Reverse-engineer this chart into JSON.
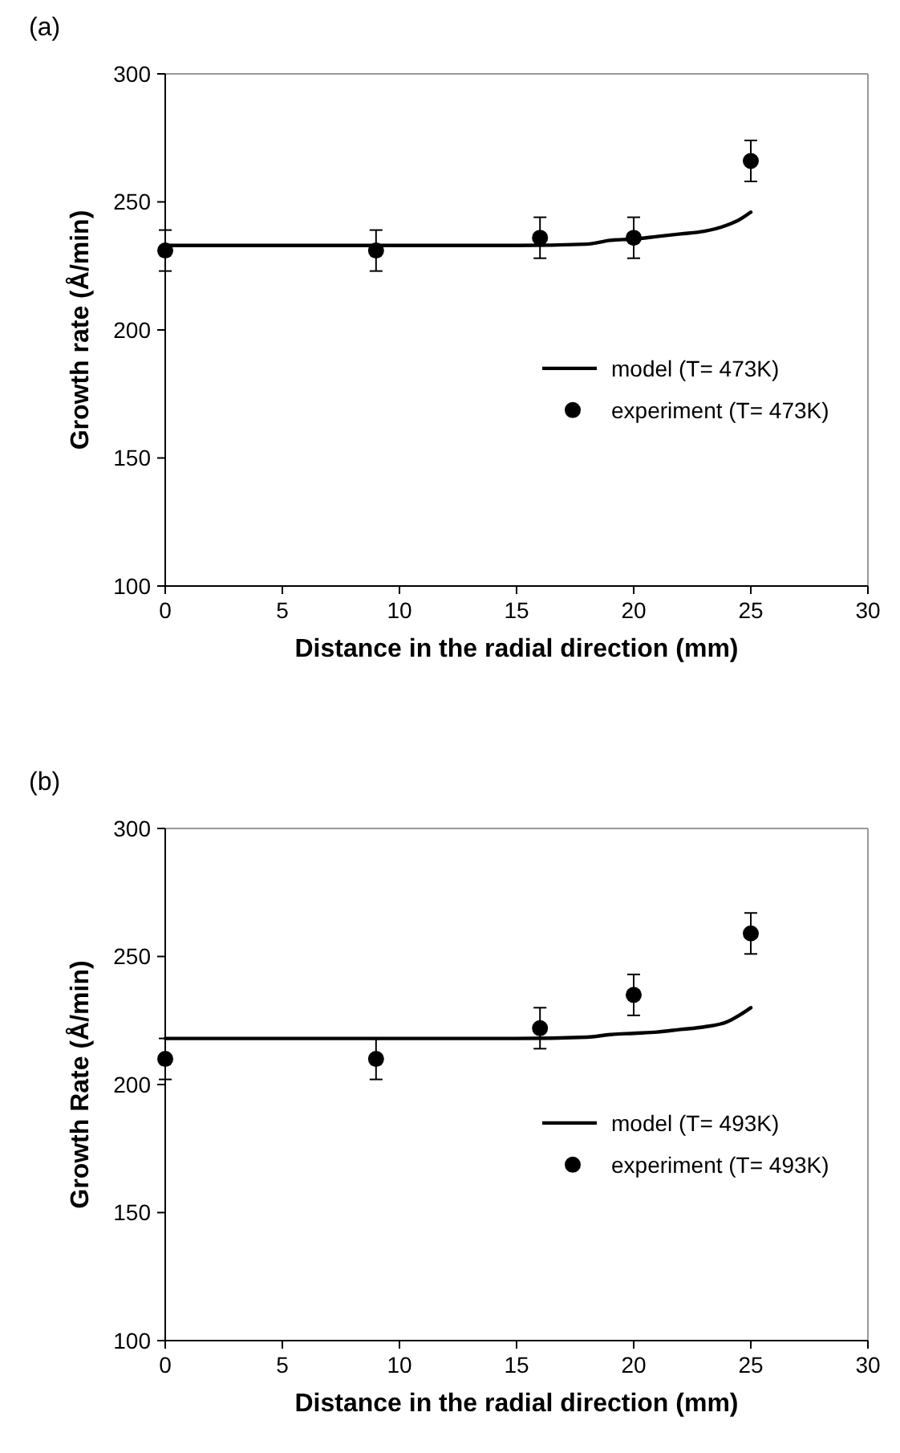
{
  "chart_data": [
    {
      "type": "line",
      "title": "(a)",
      "xlabel": "Distance in the radial direction (mm)",
      "ylabel": "Growth rate (Å/min)",
      "xlim": [
        0,
        30
      ],
      "xticks": [
        0,
        5,
        10,
        15,
        20,
        25,
        30
      ],
      "ylim": [
        100,
        300
      ],
      "yticks": [
        100,
        150,
        200,
        250,
        300
      ],
      "grid": false,
      "legend": "right",
      "series": [
        {
          "name": "model (T= 473K)",
          "color": "#000000",
          "marker": "none",
          "line_style": "solid",
          "x": [
            0,
            5,
            10,
            15,
            18,
            19,
            20,
            21,
            22,
            23,
            24,
            24.5,
            25
          ],
          "values": [
            233,
            233,
            233,
            233,
            233.5,
            235,
            235.5,
            236.5,
            237.5,
            238.5,
            241,
            243,
            246
          ]
        },
        {
          "name": "experiment (T= 473K)",
          "type": "scatter",
          "color": "#000000",
          "marker": "circle",
          "x": [
            0,
            9,
            16,
            20,
            25
          ],
          "values": [
            231,
            231,
            236,
            236,
            266
          ],
          "errors": [
            8,
            8,
            8,
            8,
            8
          ]
        }
      ]
    },
    {
      "type": "line",
      "title": "(b)",
      "xlabel": "Distance in the radial direction (mm)",
      "ylabel": "Growth Rate (Å/min)",
      "xlim": [
        0,
        30
      ],
      "xticks": [
        0,
        5,
        10,
        15,
        20,
        25,
        30
      ],
      "ylim": [
        100,
        300
      ],
      "yticks": [
        100,
        150,
        200,
        250,
        300
      ],
      "grid": false,
      "legend": "right",
      "series": [
        {
          "name": "model (T= 493K)",
          "color": "#000000",
          "marker": "none",
          "line_style": "solid",
          "x": [
            0,
            5,
            10,
            15,
            18,
            19,
            20,
            21,
            22,
            23,
            24,
            24.5,
            25
          ],
          "values": [
            218,
            218,
            218,
            218,
            218.5,
            219.5,
            220,
            220.5,
            221.5,
            222.5,
            224.5,
            227,
            230
          ]
        },
        {
          "name": "experiment (T= 493K)",
          "type": "scatter",
          "color": "#000000",
          "marker": "circle",
          "x": [
            0,
            9,
            16,
            20,
            25
          ],
          "values": [
            210,
            210,
            222,
            235,
            259
          ],
          "errors": [
            8,
            8,
            8,
            8,
            8
          ]
        }
      ]
    }
  ]
}
